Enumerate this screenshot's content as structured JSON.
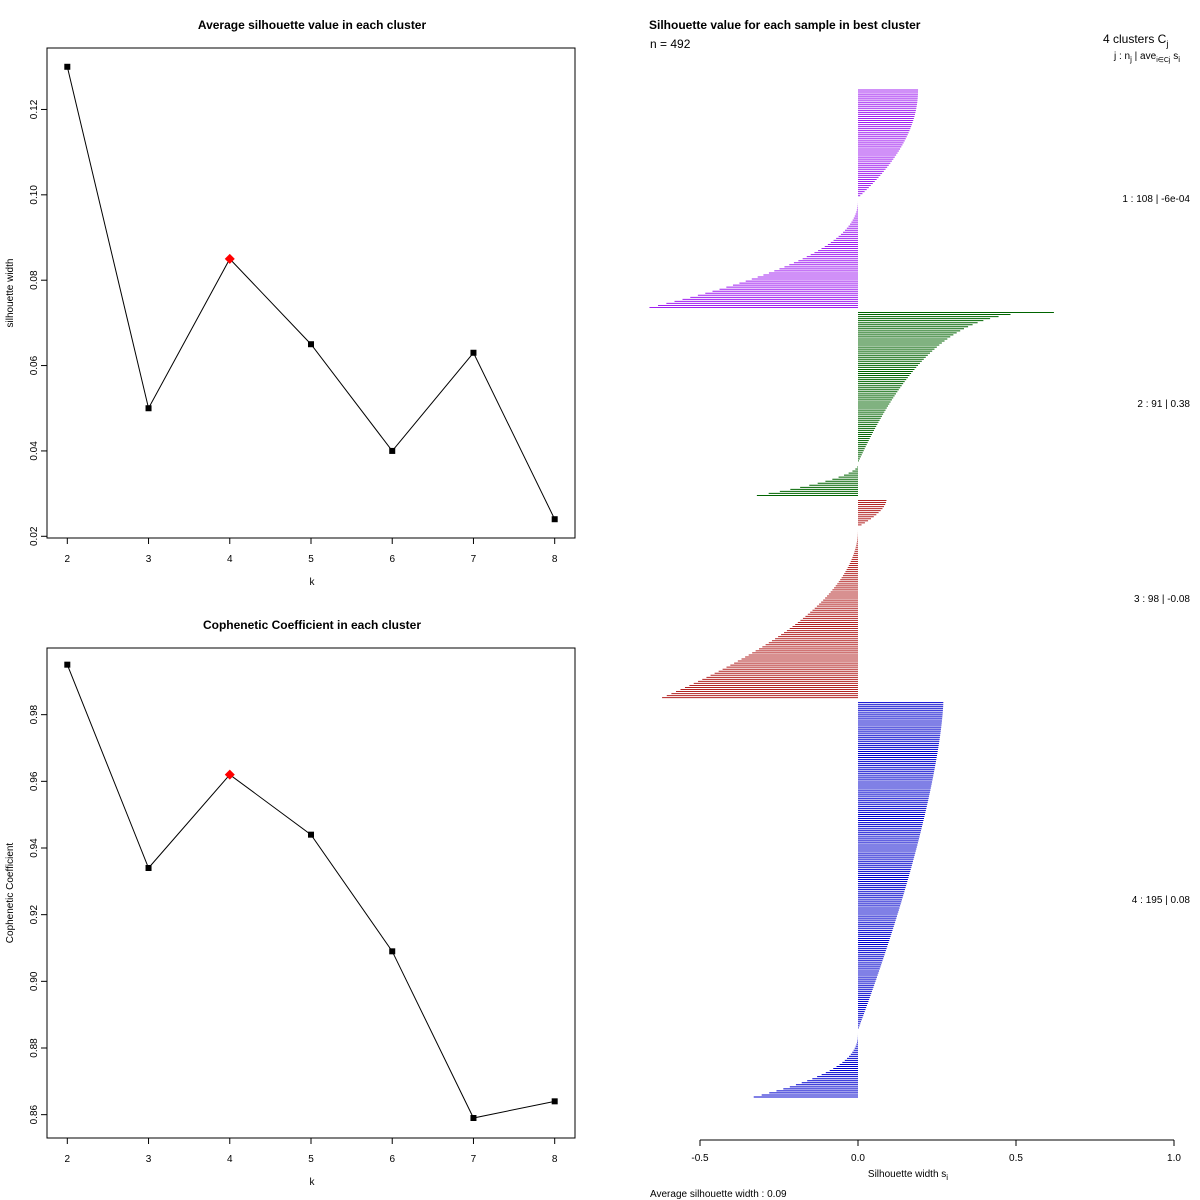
{
  "chart_data": [
    {
      "id": "avg_silhouette",
      "type": "line",
      "title": "Average silhouette value in each cluster",
      "xlabel": "k",
      "ylabel": "silhouette width",
      "x": [
        2,
        3,
        4,
        5,
        6,
        7,
        8
      ],
      "y": [
        0.13,
        0.05,
        0.085,
        0.065,
        0.04,
        0.063,
        0.024
      ],
      "highlight_x": 4,
      "highlight_color": "#ff0000",
      "point_color": "#000000",
      "xticks": [
        "2",
        "3",
        "4",
        "5",
        "6",
        "7",
        "8"
      ],
      "yticks": [
        0.02,
        0.04,
        0.06,
        0.08,
        0.1,
        0.12
      ],
      "ytick_labels": [
        "0.02",
        "0.04",
        "0.06",
        "0.08",
        "0.10",
        "0.12"
      ],
      "xlim": [
        1.75,
        8.25
      ],
      "ylim": [
        0.0196,
        0.1344
      ]
    },
    {
      "id": "cophenetic",
      "type": "line",
      "title": "Cophenetic Coefficient in each cluster",
      "xlabel": "k",
      "ylabel": "Cophenetic Coefficient",
      "x": [
        2,
        3,
        4,
        5,
        6,
        7,
        8
      ],
      "y": [
        0.995,
        0.934,
        0.962,
        0.944,
        0.909,
        0.859,
        0.864
      ],
      "highlight_x": 4,
      "highlight_color": "#ff0000",
      "point_color": "#000000",
      "xticks": [
        "2",
        "3",
        "4",
        "5",
        "6",
        "7",
        "8"
      ],
      "yticks": [
        0.86,
        0.88,
        0.9,
        0.92,
        0.94,
        0.96,
        0.98
      ],
      "ytick_labels": [
        "0.86",
        "0.88",
        "0.90",
        "0.92",
        "0.94",
        "0.96",
        "0.98"
      ],
      "xlim": [
        1.75,
        8.25
      ],
      "ylim": [
        0.853,
        1.0
      ]
    },
    {
      "id": "silhouette_plot",
      "type": "bar",
      "orientation": "horizontal",
      "title": "Silhouette value for each sample in best cluster",
      "n_label": "n = 492",
      "header_line1": "4  clusters  C",
      "header_line1_sub": "j",
      "header_line2": "j :  n",
      "header_line2_sub": "j",
      "header_line2_rest": " | ave",
      "header_line2_sub2": "i∈Cj",
      "header_line2_end": " s",
      "header_line2_sub3": "i",
      "xlabel": "Silhouette width s",
      "xlabel_sub": "i",
      "average_text": "Average silhouette width :  0.09",
      "xticks": [
        -0.5,
        0.0,
        0.5,
        1.0
      ],
      "xtick_labels": [
        "-0.5",
        "0.0",
        "0.5",
        "1.0"
      ],
      "xlim": [
        -0.5,
        1.0
      ],
      "clusters": [
        {
          "label": "1 :   108  |  -6e-04",
          "n": 108,
          "color": "#a020f0",
          "max": 0.19,
          "min": -0.66,
          "pos_frac": 0.5,
          "pos_exp": 0.5,
          "neg_exp": 2.2
        },
        {
          "label": "2 :   91  |  0.38",
          "n": 91,
          "color": "#006400",
          "max": 0.62,
          "min": -0.32,
          "pos_frac": 0.82,
          "pos_exp": 0.35,
          "neg_exp": 1.8
        },
        {
          "label": "3 :   98  |  -0.08",
          "n": 98,
          "color": "#b22222",
          "max": 0.09,
          "min": -0.62,
          "pos_frac": 0.14,
          "pos_exp": 0.6,
          "neg_exp": 2.0
        },
        {
          "label": "4 :   195  |  0.08",
          "n": 195,
          "color": "#0000cd",
          "max": 0.27,
          "min": -0.33,
          "pos_frac": 0.83,
          "pos_exp": 0.7,
          "neg_exp": 2.5
        }
      ]
    }
  ]
}
